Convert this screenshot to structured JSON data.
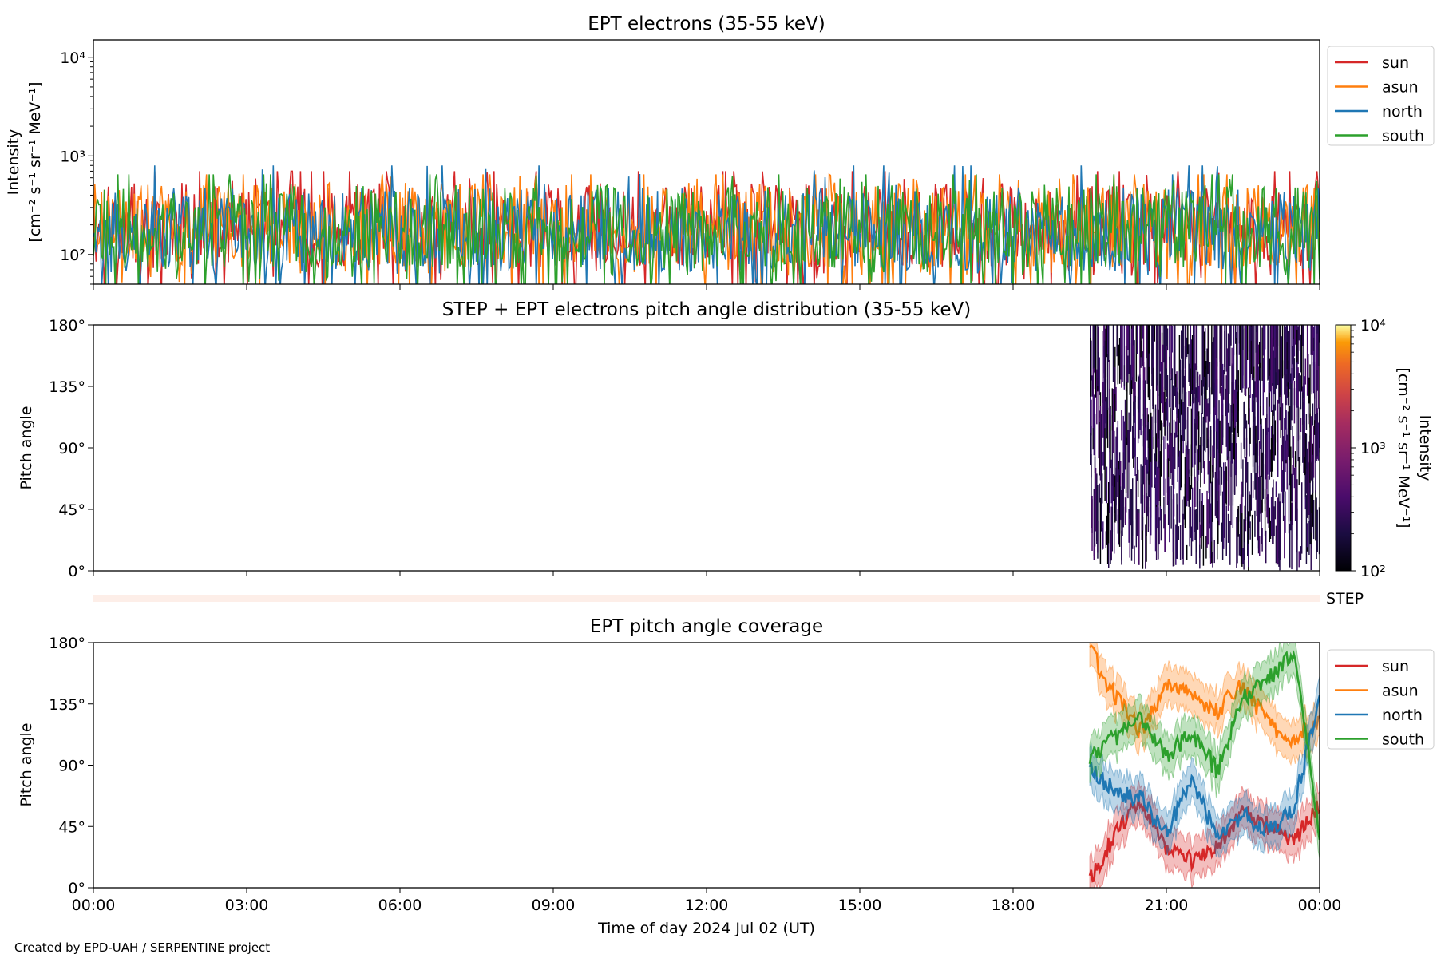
{
  "footer": {
    "credit": "Created by EPD-UAH / SERPENTINE project"
  },
  "colors": {
    "sun": "#d62728",
    "asun": "#ff7f0e",
    "north": "#1f77b4",
    "south": "#2ca02c",
    "step_strip": "#fdeee8"
  },
  "chart_data": [
    {
      "id": "intensity",
      "type": "line",
      "title": "EPT electrons (35-55 keV)",
      "ylabel_line1": "Intensity",
      "ylabel_line2": "[cm⁻² s⁻¹ sr⁻¹ MeV⁻¹]",
      "yscale": "log",
      "ylim": [
        50,
        15000
      ],
      "yticks": [
        "10²",
        "10³",
        "10⁴"
      ],
      "x_range_hours": [
        0,
        24
      ],
      "series": [
        {
          "name": "sun",
          "color": "#d62728",
          "typical_range": [
            50,
            700
          ],
          "median": 200
        },
        {
          "name": "asun",
          "color": "#ff7f0e",
          "typical_range": [
            50,
            650
          ],
          "median": 200
        },
        {
          "name": "north",
          "color": "#1f77b4",
          "typical_range": [
            50,
            800
          ],
          "median": 180
        },
        {
          "name": "south",
          "color": "#2ca02c",
          "typical_range": [
            50,
            650
          ],
          "median": 190
        }
      ],
      "legend": [
        "sun",
        "asun",
        "north",
        "south"
      ],
      "legend_position": "outside-right"
    },
    {
      "id": "pad",
      "type": "heatmap",
      "title": "STEP + EPT electrons pitch angle distribution (35-55 keV)",
      "ylabel": "Pitch angle",
      "ylim": [
        0,
        180
      ],
      "yticks": [
        "0°",
        "45°",
        "90°",
        "135°",
        "180°"
      ],
      "data_start_hour": 19.5,
      "data_end_hour": 24,
      "colorbar": {
        "label": "Intensity",
        "label_units": "[cm⁻² s⁻¹ sr⁻¹ MeV⁻¹]",
        "scale": "log",
        "range": [
          100,
          10000
        ],
        "ticks": [
          "10²",
          "10³",
          "10⁴"
        ],
        "colormap": "inferno"
      }
    },
    {
      "id": "step",
      "type": "strip",
      "label": "STEP"
    },
    {
      "id": "coverage",
      "type": "line",
      "title": "EPT pitch angle coverage",
      "ylabel": "Pitch angle",
      "ylim": [
        0,
        180
      ],
      "yticks": [
        "0°",
        "45°",
        "90°",
        "135°",
        "180°"
      ],
      "xlabel": "Time of day 2024 Jul 02 (UT)",
      "xticks": [
        "00:00",
        "03:00",
        "06:00",
        "09:00",
        "12:00",
        "15:00",
        "18:00",
        "21:00",
        "00:00"
      ],
      "data_start_hour": 19.5,
      "series": [
        {
          "name": "sun",
          "color": "#d62728",
          "hours": [
            19.5,
            20,
            20.5,
            21,
            21.5,
            22,
            22.5,
            23,
            23.5,
            24
          ],
          "values": [
            5,
            40,
            65,
            30,
            20,
            30,
            55,
            45,
            35,
            60
          ]
        },
        {
          "name": "asun",
          "color": "#ff7f0e",
          "hours": [
            19.5,
            20,
            20.5,
            21,
            21.5,
            22,
            22.5,
            23,
            23.5,
            24
          ],
          "values": [
            175,
            140,
            115,
            150,
            140,
            130,
            150,
            120,
            110,
            120
          ]
        },
        {
          "name": "north",
          "color": "#1f77b4",
          "hours": [
            19.5,
            20,
            20.5,
            21,
            21.5,
            22,
            22.5,
            23,
            23.5,
            24
          ],
          "values": [
            90,
            70,
            65,
            40,
            80,
            35,
            55,
            40,
            60,
            140
          ]
        },
        {
          "name": "south",
          "color": "#2ca02c",
          "hours": [
            19.5,
            20,
            20.5,
            21,
            21.5,
            22,
            22.5,
            23,
            23.5,
            24
          ],
          "values": [
            95,
            110,
            125,
            95,
            115,
            85,
            140,
            155,
            170,
            40
          ]
        }
      ],
      "legend": [
        "sun",
        "asun",
        "north",
        "south"
      ],
      "legend_position": "outside-right"
    }
  ]
}
